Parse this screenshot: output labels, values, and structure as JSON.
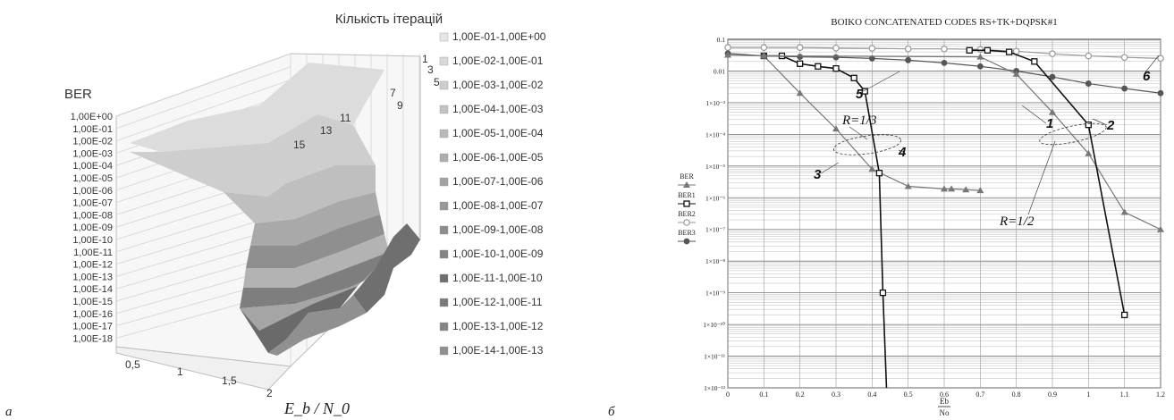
{
  "panel_labels": [
    "a",
    "б"
  ],
  "chart_data": [
    {
      "type": "surface",
      "title": "Кількість ітерацій",
      "zlabel": "BER",
      "xlabel": "E_b / N_0",
      "x_ticks": [
        "0,5",
        "1",
        "1,5",
        "2"
      ],
      "depth_ticks": [
        "1",
        "3",
        "5",
        "7",
        "9",
        "11",
        "13",
        "15"
      ],
      "z_ticks": [
        "1,00E+00",
        "1,00E-01",
        "1,00E-02",
        "1,00E-03",
        "1,00E-04",
        "1,00E-05",
        "1,00E-06",
        "1,00E-07",
        "1,00E-08",
        "1,00E-09",
        "1,00E-10",
        "1,00E-11",
        "1,00E-12",
        "1,00E-13",
        "1,00E-14",
        "1,00E-15",
        "1,00E-16",
        "1,00E-17",
        "1,00E-18"
      ],
      "legend": [
        {
          "label": "1,00E-01-1,00E+00",
          "color": "#e6e6e6"
        },
        {
          "label": "1,00E-02-1,00E-01",
          "color": "#d9d9d9"
        },
        {
          "label": "1,00E-03-1,00E-02",
          "color": "#cdcdcd"
        },
        {
          "label": "1,00E-04-1,00E-03",
          "color": "#c3c3c3"
        },
        {
          "label": "1,00E-05-1,00E-04",
          "color": "#b8b8b8"
        },
        {
          "label": "1,00E-06-1,00E-05",
          "color": "#adadad"
        },
        {
          "label": "1,00E-07-1,00E-06",
          "color": "#a3a3a3"
        },
        {
          "label": "1,00E-08-1,00E-07",
          "color": "#989898"
        },
        {
          "label": "1,00E-09-1,00E-08",
          "color": "#8d8d8d"
        },
        {
          "label": "1,00E-10-1,00E-09",
          "color": "#828282"
        },
        {
          "label": "1,00E-11-1,00E-10",
          "color": "#6f6f6f"
        },
        {
          "label": "1,00E-12-1,00E-11",
          "color": "#7a7a7a"
        },
        {
          "label": "1,00E-13-1,00E-12",
          "color": "#858585"
        },
        {
          "label": "1,00E-14-1,00E-13",
          "color": "#909090"
        }
      ]
    },
    {
      "type": "line",
      "title": "BOIKO CONCATENATED CODES RS+TK+DQPSK#1",
      "xlabel_num": "Eb",
      "xlabel_den": "No",
      "y_scale": "log",
      "xlim": [
        0,
        1.2
      ],
      "ylim": [
        1e-12,
        0.1
      ],
      "grid": true,
      "x_ticks": [
        "0",
        "0.1",
        "0.2",
        "0.3",
        "0.4",
        "0.5",
        "0.6",
        "0.7",
        "0.8",
        "0.9",
        "1",
        "1.1",
        "1.2"
      ],
      "y_ticks": [
        {
          "value": 0.1,
          "label": "0.1"
        },
        {
          "value": 0.01,
          "label": "0.01"
        },
        {
          "value": 0.001,
          "label": "1×10⁻³"
        },
        {
          "value": 0.0001,
          "label": "1×10⁻⁴"
        },
        {
          "value": 1e-05,
          "label": "1×10⁻⁵"
        },
        {
          "value": 1e-06,
          "label": "1×10⁻⁶"
        },
        {
          "value": 1e-07,
          "label": "1×10⁻⁷"
        },
        {
          "value": 1e-08,
          "label": "1×10⁻⁸"
        },
        {
          "value": 1e-09,
          "label": "1×10⁻⁹"
        },
        {
          "value": 1e-10,
          "label": "1×10⁻¹⁰"
        },
        {
          "value": 1e-11,
          "label": "1×10⁻¹¹"
        },
        {
          "value": 1e-12,
          "label": "1×10⁻¹²"
        }
      ],
      "legend_position": "left",
      "series": [
        {
          "name": "BER",
          "marker": "triangle",
          "color": "#777777",
          "x": [
            0.1,
            0.2,
            0.3,
            0.4,
            0.5,
            0.6,
            0.62,
            0.66,
            0.7
          ],
          "y": [
            0.03,
            0.002,
            0.00015,
            8e-06,
            2.3e-06,
            1.9e-06,
            1.9e-06,
            1.8e-06,
            1.7e-06
          ]
        },
        {
          "name": "BER1",
          "marker": "square",
          "color": "#111111",
          "x": [
            0.1,
            0.15,
            0.2,
            0.25,
            0.3,
            0.35,
            0.38,
            0.42,
            0.43,
            0.44
          ],
          "y": [
            0.03,
            0.03,
            0.017,
            0.014,
            0.012,
            0.006,
            0.0023,
            6e-06,
            1e-09,
            1e-12
          ]
        },
        {
          "name": "BER2",
          "marker": "circle-open",
          "color": "#999999",
          "x": [
            0,
            0.1,
            0.2,
            0.3,
            0.4,
            0.5,
            0.6,
            0.7,
            0.8,
            0.9,
            1.0,
            1.1,
            1.2
          ],
          "y": [
            0.055,
            0.055,
            0.055,
            0.053,
            0.052,
            0.05,
            0.05,
            0.048,
            0.042,
            0.035,
            0.03,
            0.027,
            0.025
          ]
        },
        {
          "name": "BER3",
          "marker": "circle-filled",
          "color": "#555555",
          "x": [
            0,
            0.1,
            0.2,
            0.3,
            0.4,
            0.5,
            0.6,
            0.7,
            0.8,
            0.9,
            1.0,
            1.1,
            1.2
          ],
          "y": [
            0.036,
            0.03,
            0.028,
            0.027,
            0.025,
            0.022,
            0.018,
            0.014,
            0.01,
            0.0065,
            0.004,
            0.0028,
            0.002
          ]
        },
        {
          "name": "",
          "marker": "triangle",
          "color": "#777777",
          "x": [
            0,
            0.1,
            0.7,
            0.8,
            0.9,
            1.0,
            1.1,
            1.2
          ],
          "y": [
            0.032,
            0.03,
            0.028,
            0.008,
            0.0005,
            2.5e-05,
            3.5e-07,
            1e-07
          ]
        },
        {
          "name": "",
          "marker": "square",
          "color": "#111111",
          "x": [
            0.67,
            0.72,
            0.78,
            0.85,
            1.0,
            1.1
          ],
          "y": [
            0.045,
            0.045,
            0.04,
            0.02,
            0.0002,
            2e-10
          ]
        }
      ],
      "annotations": {
        "numbers": [
          "1",
          "2",
          "3",
          "4",
          "5",
          "6"
        ],
        "rates": [
          "R=1/3",
          "R=1/2"
        ]
      }
    }
  ]
}
